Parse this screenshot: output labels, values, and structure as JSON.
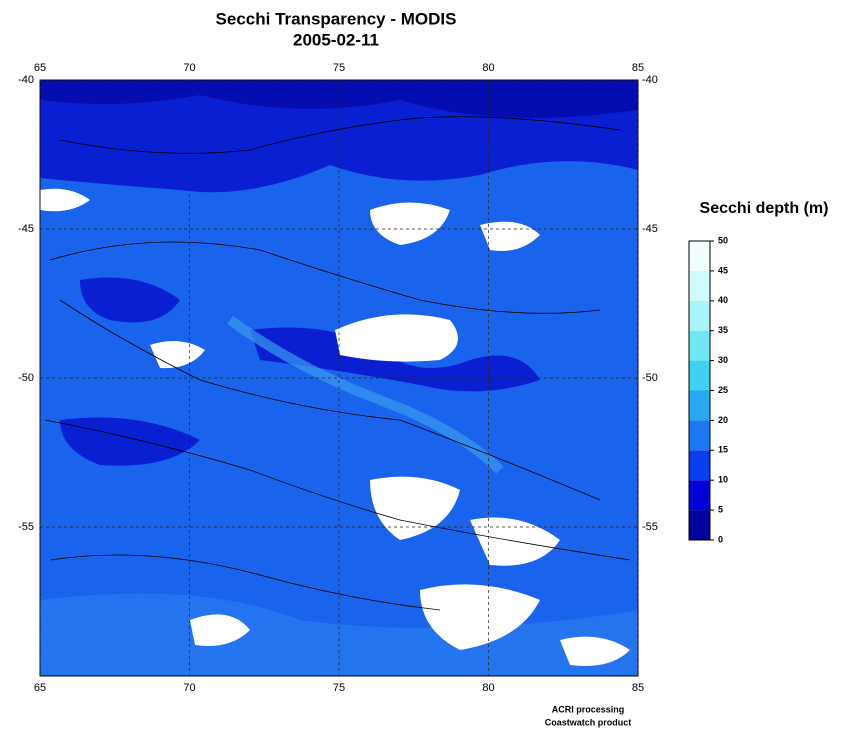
{
  "title": "Secchi Transparency - MODIS",
  "subtitle": "2005-02-11",
  "map": {
    "xlim": [
      65,
      85
    ],
    "ylim": [
      -60,
      -40
    ],
    "xticks": [
      65,
      70,
      75,
      80,
      85
    ],
    "yticks": [
      -40,
      -45,
      -50,
      -55
    ],
    "grid": true
  },
  "colorbar": {
    "label": "Secchi depth (m)",
    "range": [
      0,
      50
    ],
    "ticks": [
      0,
      5,
      10,
      15,
      20,
      25,
      30,
      35,
      40,
      45,
      50
    ],
    "colors": [
      "#00009c",
      "#0000d8",
      "#0a3cf0",
      "#1a78f0",
      "#28a8f0",
      "#40d0f0",
      "#70e8f4",
      "#a8f4f8",
      "#d0fafc",
      "#f0fefe"
    ]
  },
  "credits": [
    "ACRI processing",
    "Coastwatch product"
  ]
}
